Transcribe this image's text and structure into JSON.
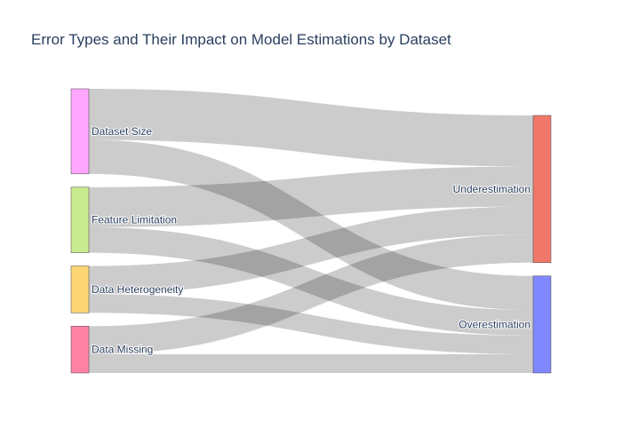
{
  "chart_data": {
    "type": "sankey",
    "title": "Error Types and Their Impact on Model Estimations by Dataset",
    "nodes": [
      {
        "name": "Dataset Size",
        "color": "#FFA7FF"
      },
      {
        "name": "Feature Limitation",
        "color": "#C9EA8F"
      },
      {
        "name": "Data Heterogeneity",
        "color": "#FDD675"
      },
      {
        "name": "Data Missing",
        "color": "#FF82A5"
      },
      {
        "name": "Underestimation",
        "color": "#F0786A"
      },
      {
        "name": "Overestimation",
        "color": "#8088FF"
      }
    ],
    "links": [
      {
        "source": "Dataset Size",
        "target": "Underestimation",
        "value": 60
      },
      {
        "source": "Dataset Size",
        "target": "Overestimation",
        "value": 40
      },
      {
        "source": "Feature Limitation",
        "target": "Underestimation",
        "value": 47
      },
      {
        "source": "Feature Limitation",
        "target": "Overestimation",
        "value": 30
      },
      {
        "source": "Data Heterogeneity",
        "target": "Underestimation",
        "value": 33
      },
      {
        "source": "Data Heterogeneity",
        "target": "Overestimation",
        "value": 22
      },
      {
        "source": "Data Missing",
        "target": "Underestimation",
        "value": 33
      },
      {
        "source": "Data Missing",
        "target": "Overestimation",
        "value": 22
      }
    ],
    "link_color": "#000000"
  }
}
